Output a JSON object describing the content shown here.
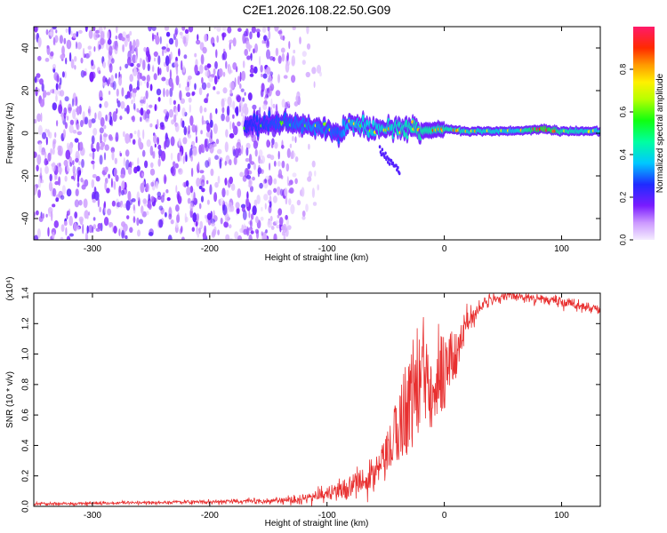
{
  "title": "C2E1.2026.108.22.50.G09",
  "colors": {
    "snr_line": "#e83030",
    "frame": "#000000",
    "background": "#ffffff"
  },
  "chart_data": [
    {
      "type": "heatmap",
      "xlabel": "Height of straight line (km)",
      "ylabel": "Frequency (Hz)",
      "xlim": [
        -350,
        133
      ],
      "ylim": [
        -50,
        50
      ],
      "xticks": [
        -300,
        -200,
        -100,
        0,
        100
      ],
      "yticks": [
        -40,
        -20,
        0,
        20,
        40
      ],
      "grid": false,
      "colorbar": {
        "label": "Normalized spectral amplitude",
        "range": [
          0,
          1
        ],
        "ticks": [
          0.0,
          0.2,
          0.4,
          0.6,
          0.8
        ],
        "colormap": "rainbow"
      },
      "signal_trace": {
        "description_points_x": [
          -170,
          -140,
          -110,
          -90,
          -80,
          -60,
          -40,
          -20,
          0,
          20,
          60,
          85,
          100,
          133
        ],
        "description_points_y": [
          4,
          5,
          3,
          0,
          5,
          2,
          3,
          1,
          2,
          1,
          1,
          2,
          1,
          1
        ],
        "amplitude": [
          0.4,
          0.45,
          0.5,
          0.45,
          0.6,
          0.6,
          0.65,
          0.7,
          0.7,
          0.65,
          0.6,
          0.9,
          0.7,
          0.6
        ]
      },
      "noise_region_x": [
        -350,
        -125
      ]
    },
    {
      "type": "line",
      "xlabel": "Height of straight line (km)",
      "ylabel": "SNR (10 * v/v)",
      "yscale_note": "(x10⁴)",
      "xlim": [
        -350,
        133
      ],
      "ylim": [
        0,
        1.4
      ],
      "xticks": [
        -300,
        -200,
        -100,
        0,
        100
      ],
      "yticks": [
        0.0,
        0.2,
        0.4,
        0.6,
        0.8,
        1.0,
        1.2,
        1.4
      ],
      "grid": false,
      "envelope": {
        "x": [
          -350,
          -300,
          -250,
          -200,
          -150,
          -120,
          -100,
          -80,
          -60,
          -50,
          -40,
          -30,
          -20,
          -10,
          0,
          10,
          20,
          30,
          40,
          60,
          80,
          100,
          120,
          133
        ],
        "y": [
          0.015,
          0.02,
          0.025,
          0.03,
          0.035,
          0.05,
          0.08,
          0.12,
          0.2,
          0.3,
          0.5,
          0.7,
          0.85,
          0.9,
          0.9,
          1.0,
          1.2,
          1.3,
          1.36,
          1.38,
          1.37,
          1.34,
          1.31,
          1.29
        ],
        "noise": [
          0.01,
          0.01,
          0.01,
          0.012,
          0.015,
          0.03,
          0.05,
          0.08,
          0.12,
          0.18,
          0.3,
          0.45,
          0.5,
          0.5,
          0.35,
          0.2,
          0.1,
          0.05,
          0.03,
          0.03,
          0.03,
          0.03,
          0.03,
          0.03
        ]
      }
    }
  ]
}
